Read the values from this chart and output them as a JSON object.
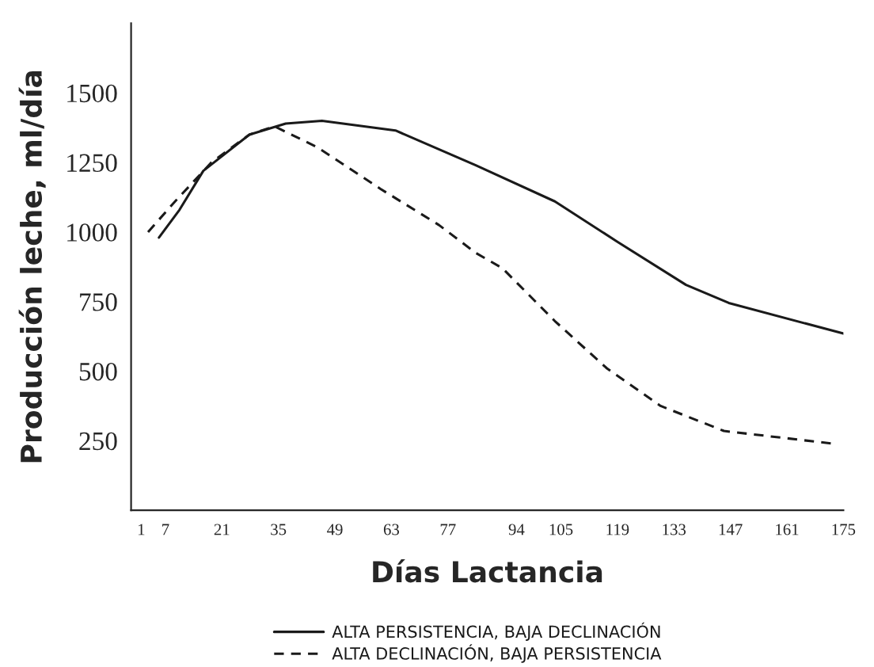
{
  "chart_data": {
    "type": "line",
    "xlabel": "Días Lactancia",
    "ylabel": "Producción leche, ml/día",
    "xlim": [
      -1.5,
      175
    ],
    "xticks": [
      1,
      7,
      21,
      35,
      49,
      63,
      77,
      94,
      105,
      119,
      133,
      147,
      161,
      175
    ],
    "ylim": [
      0,
      1750
    ],
    "yticks": [
      250,
      500,
      750,
      1000,
      1250,
      1500
    ],
    "grid": false,
    "legend": "bottom",
    "series": [
      {
        "name": "ALTA PERSISTENCIA, BAJA DECLINACIÓN",
        "color": "#1a1a1a",
        "line_style": "solid",
        "x": [
          5.4,
          10.5,
          16.4,
          27.8,
          36.8,
          45.8,
          64,
          83.9,
          103.5,
          119,
          136,
          146.6,
          175
        ],
        "values": [
          980,
          1080,
          1220,
          1350,
          1390,
          1400,
          1365,
          1240,
          1110,
          965,
          810,
          745,
          635
        ]
      },
      {
        "name": "ALTA DECLINACIÓN, BAJA PERSISTENCIA",
        "color": "#1a1a1a",
        "line_style": "dashed",
        "x": [
          2.7,
          9.4,
          18.4,
          27.8,
          34,
          44.6,
          60.3,
          74.8,
          83.9,
          90.5,
          103.5,
          116.4,
          129.7,
          145.4,
          172
        ],
        "values": [
          1000,
          1110,
          1250,
          1350,
          1380,
          1305,
          1155,
          1025,
          925,
          870,
          680,
          510,
          375,
          285,
          240
        ]
      }
    ]
  }
}
